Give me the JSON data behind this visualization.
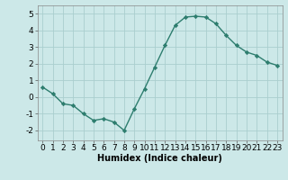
{
  "x": [
    0,
    1,
    2,
    3,
    4,
    5,
    6,
    7,
    8,
    9,
    10,
    11,
    12,
    13,
    14,
    15,
    16,
    17,
    18,
    19,
    20,
    21,
    22,
    23
  ],
  "y": [
    0.6,
    0.2,
    -0.4,
    -0.5,
    -1.0,
    -1.4,
    -1.3,
    -1.5,
    -2.0,
    -0.7,
    0.5,
    1.8,
    3.1,
    4.3,
    4.8,
    4.85,
    4.8,
    4.4,
    3.7,
    3.1,
    2.7,
    2.5,
    2.1,
    1.9
  ],
  "line_color": "#2d7d6e",
  "marker": "D",
  "markersize": 2.2,
  "linewidth": 1.0,
  "bg_color": "#cce8e8",
  "grid_color": "#aacece",
  "xlabel": "Humidex (Indice chaleur)",
  "xlabel_fontsize": 7,
  "tick_fontsize": 6.5,
  "ylim": [
    -2.6,
    5.5
  ],
  "xlim": [
    -0.5,
    23.5
  ],
  "yticks": [
    -2,
    -1,
    0,
    1,
    2,
    3,
    4,
    5
  ],
  "xticks": [
    0,
    1,
    2,
    3,
    4,
    5,
    6,
    7,
    8,
    9,
    10,
    11,
    12,
    13,
    14,
    15,
    16,
    17,
    18,
    19,
    20,
    21,
    22,
    23
  ]
}
